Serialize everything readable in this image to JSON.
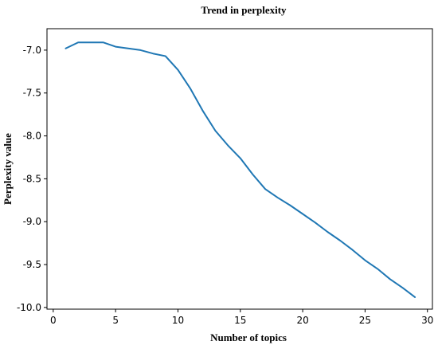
{
  "chart_data": {
    "type": "line",
    "title": "Trend in perplexity",
    "xlabel": "Number of topics",
    "ylabel": "Perplexity value",
    "xlim": [
      -0.5,
      30.4
    ],
    "ylim": [
      -10.02,
      -6.75
    ],
    "xticks": [
      0,
      5,
      10,
      15,
      20,
      25,
      30
    ],
    "xtick_labels": [
      "0",
      "5",
      "10",
      "15",
      "20",
      "25",
      "30"
    ],
    "yticks": [
      -7.0,
      -7.5,
      -8.0,
      -8.5,
      -9.0,
      -9.5,
      -10.0
    ],
    "ytick_labels": [
      "-7.0",
      "-7.5",
      "-8.0",
      "-8.5",
      "-9.0",
      "-9.5",
      "-10.0"
    ],
    "grid": false,
    "series": [
      {
        "color": "#1f77b4",
        "x": [
          1,
          2,
          3,
          4,
          5,
          6,
          7,
          8,
          9,
          10,
          11,
          12,
          13,
          14,
          15,
          16,
          17,
          18,
          19,
          20,
          21,
          22,
          23,
          24,
          25,
          26,
          27,
          28,
          29
        ],
        "values": [
          -6.98,
          -6.91,
          -6.91,
          -6.91,
          -6.96,
          -6.98,
          -7.0,
          -7.04,
          -7.07,
          -7.23,
          -7.45,
          -7.71,
          -7.94,
          -8.11,
          -8.26,
          -8.45,
          -8.62,
          -8.72,
          -8.81,
          -8.91,
          -9.01,
          -9.12,
          -9.22,
          -9.33,
          -9.45,
          -9.55,
          -9.67,
          -9.77,
          -9.88
        ]
      }
    ]
  }
}
